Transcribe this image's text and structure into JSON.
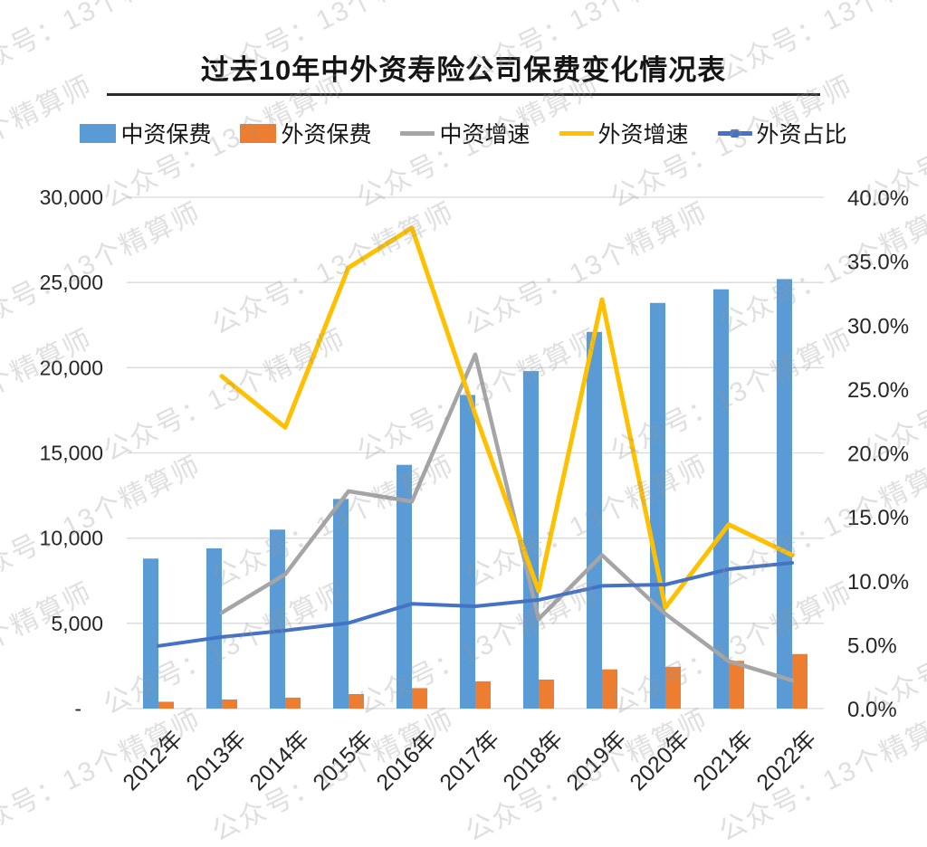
{
  "title": "过去10年中外资寿险公司保费变化情况表",
  "watermark": {
    "text": "公众号：13个精算师",
    "short_text": "13个精算师"
  },
  "legend": [
    {
      "label": "中资保费",
      "type": "bar",
      "color": "#5B9BD5"
    },
    {
      "label": "外资保费",
      "type": "bar",
      "color": "#ED7D31"
    },
    {
      "label": "中资增速",
      "type": "line",
      "color": "#A5A5A5"
    },
    {
      "label": "外资增速",
      "type": "line",
      "color": "#FFC000"
    },
    {
      "label": "外资占比",
      "type": "line-marker",
      "color": "#4472C4"
    }
  ],
  "chart_data": {
    "type": "bar",
    "subtype": "combo-bar-line-dual-axis",
    "title": "过去10年中外资寿险公司保费变化情况表",
    "categories": [
      "2012年",
      "2013年",
      "2014年",
      "2015年",
      "2016年",
      "2017年",
      "2018年",
      "2019年",
      "2020年",
      "2021年",
      "2022年"
    ],
    "series": [
      {
        "name": "中资保费",
        "key": "domestic-premium",
        "type": "bar",
        "axis": "left",
        "color": "#5B9BD5",
        "values": [
          8800,
          9400,
          10500,
          12300,
          14300,
          18400,
          19800,
          22100,
          23800,
          24600,
          25200
        ]
      },
      {
        "name": "外资保费",
        "key": "foreign-premium",
        "type": "bar",
        "axis": "left",
        "color": "#ED7D31",
        "values": [
          400,
          530,
          640,
          850,
          1200,
          1600,
          1700,
          2300,
          2450,
          2800,
          3200
        ]
      },
      {
        "name": "中资增速",
        "key": "domestic-growth",
        "type": "line",
        "axis": "right",
        "color": "#A5A5A5",
        "stroke_width": 4.5,
        "values": [
          null,
          7.5,
          10.5,
          17.0,
          16.2,
          27.7,
          7.0,
          12.0,
          7.4,
          3.7,
          2.2
        ]
      },
      {
        "name": "外资增速",
        "key": "foreign-growth",
        "type": "line",
        "axis": "right",
        "color": "#FFC000",
        "stroke_width": 5,
        "values": [
          null,
          26.0,
          22.0,
          34.5,
          37.6,
          23.0,
          9.2,
          32.0,
          7.9,
          14.4,
          12.0
        ]
      },
      {
        "name": "外资占比",
        "key": "foreign-share",
        "type": "line",
        "axis": "right",
        "color": "#4472C4",
        "stroke_width": 4,
        "values": [
          4.9,
          5.6,
          6.1,
          6.7,
          8.2,
          8.0,
          8.5,
          9.6,
          9.7,
          10.9,
          11.4
        ]
      }
    ],
    "left_axis": {
      "min": 0,
      "max": 30000,
      "tick_step": 5000,
      "tick_labels_bottom_up": [
        "-",
        "5,000",
        "10,000",
        "15,000",
        "20,000",
        "25,000",
        "30,000"
      ]
    },
    "right_axis": {
      "min": 0,
      "max": 40,
      "tick_step": 5,
      "unit": "%",
      "tick_labels_bottom_up": [
        "0.0%",
        "5.0%",
        "10.0%",
        "15.0%",
        "20.0%",
        "25.0%",
        "30.0%",
        "35.0%",
        "40.0%"
      ]
    },
    "grid": true,
    "legend_position": "top",
    "grid_color": "#D9D9D9",
    "axis_text_color": "#262626"
  }
}
